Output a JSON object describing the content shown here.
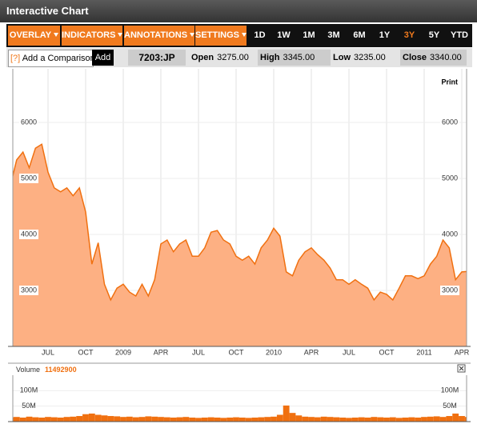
{
  "header": {
    "title": "Interactive Chart"
  },
  "toolbar": {
    "menus": [
      "OVERLAY",
      "INDICATORS",
      "ANNOTATIONS",
      "SETTINGS"
    ],
    "ranges": [
      "1D",
      "1W",
      "1M",
      "3M",
      "6M",
      "1Y",
      "3Y",
      "5Y",
      "YTD"
    ],
    "active_range": 6
  },
  "quote": {
    "help": "[?]",
    "placeholder": "Add a Comparison",
    "button": "Add",
    "symbol": "7203:JP",
    "fields": [
      {
        "label": "Open",
        "value": "3275.00"
      },
      {
        "label": "High",
        "value": "3345.00"
      },
      {
        "label": "Low",
        "value": "3235.00"
      },
      {
        "label": "Close",
        "value": "3340.00"
      }
    ]
  },
  "print": "Print",
  "chart_data": [
    {
      "type": "area",
      "categories": [
        null,
        null,
        null,
        null,
        null,
        null,
        "JUL",
        null,
        null,
        null,
        null,
        null,
        "OCT",
        null,
        null,
        null,
        null,
        null,
        "2009",
        null,
        null,
        null,
        null,
        null,
        "APR",
        null,
        null,
        null,
        null,
        null,
        "JUL",
        null,
        null,
        null,
        null,
        null,
        "OCT",
        null,
        null,
        null,
        null,
        null,
        "2010",
        null,
        null,
        null,
        null,
        null,
        "APR",
        null,
        null,
        null,
        null,
        null,
        "JUL",
        null,
        null,
        null,
        null,
        null,
        "OCT",
        null,
        null,
        null,
        null,
        null,
        "2011",
        null,
        null,
        null,
        null,
        null,
        "APR",
        null
      ],
      "values": [
        4870,
        5330,
        5470,
        5190,
        5540,
        5610,
        5110,
        4830,
        4760,
        4830,
        4690,
        4830,
        4400,
        3470,
        3850,
        3110,
        2830,
        3040,
        3110,
        2970,
        2900,
        3110,
        2900,
        3190,
        3830,
        3900,
        3690,
        3830,
        3900,
        3610,
        3610,
        3760,
        4040,
        4070,
        3900,
        3830,
        3610,
        3540,
        3610,
        3470,
        3760,
        3900,
        4110,
        3970,
        3330,
        3260,
        3540,
        3690,
        3760,
        3640,
        3540,
        3400,
        3190,
        3190,
        3110,
        3190,
        3110,
        3040,
        2830,
        2970,
        2930,
        2830,
        3040,
        3260,
        3260,
        3210,
        3260,
        3470,
        3610,
        3900,
        3760,
        3190,
        3330,
        3340
      ],
      "color": "#fdb083",
      "line_color": "#f07010",
      "ylim": [
        2000,
        6800
      ],
      "yticks": [
        3000,
        4000,
        5000,
        6000
      ],
      "grid": true
    },
    {
      "type": "bar",
      "label": "Volume",
      "current": 11492900,
      "values": [
        14000000,
        15000000,
        13000000,
        16000000,
        14000000,
        13000000,
        15000000,
        14000000,
        13000000,
        15000000,
        16000000,
        18000000,
        24000000,
        26000000,
        22000000,
        20000000,
        18000000,
        17000000,
        15000000,
        16000000,
        14000000,
        15000000,
        17000000,
        16000000,
        15000000,
        14000000,
        13000000,
        14000000,
        15000000,
        13000000,
        12000000,
        13000000,
        14000000,
        13000000,
        12000000,
        13000000,
        14000000,
        13000000,
        12000000,
        13000000,
        14000000,
        15000000,
        16000000,
        22000000,
        52000000,
        28000000,
        20000000,
        16000000,
        15000000,
        14000000,
        16000000,
        15000000,
        14000000,
        13000000,
        12000000,
        13000000,
        14000000,
        13000000,
        15000000,
        14000000,
        13000000,
        14000000,
        12000000,
        13000000,
        14000000,
        13000000,
        15000000,
        16000000,
        17000000,
        15000000,
        18000000,
        26000000,
        18000000,
        15000000
      ],
      "color": "#f07010",
      "ylim": [
        0,
        150000000
      ],
      "yticks": [
        {
          "value": 50000000,
          "label": "50M"
        },
        {
          "value": 100000000,
          "label": "100M"
        }
      ]
    }
  ]
}
